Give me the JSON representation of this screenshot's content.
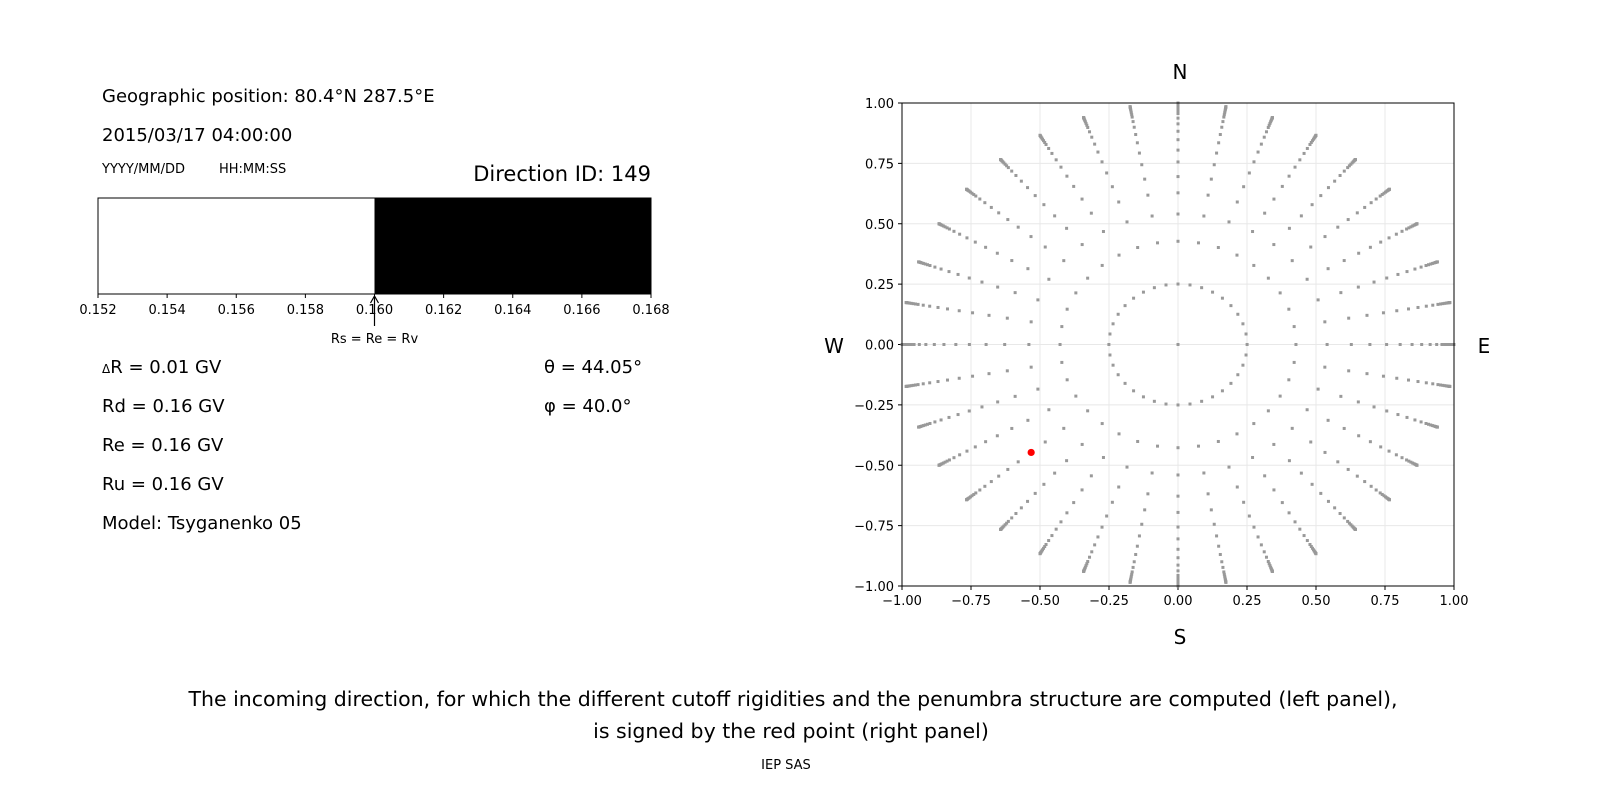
{
  "header": {
    "geo_position": "Geographic position: 80.4°N 287.5°E",
    "datetime": "2015/03/17 04:00:00",
    "date_format": "YYYY/MM/DD",
    "time_format": "HH:MM:SS",
    "direction_id": "Direction ID: 149"
  },
  "values": {
    "delta_r_symbol": "Δ",
    "delta_r": "R = 0.01 GV",
    "rd": "Rd = 0.16 GV",
    "re": "Re = 0.16 GV",
    "ru": "Ru = 0.16 GV",
    "model": "Model: Tsyganenko 05",
    "theta": "θ = 44.05°",
    "phi": "φ = 40.0°"
  },
  "compass": {
    "n": "N",
    "s": "S",
    "w": "W",
    "e": "E"
  },
  "caption": {
    "line1": "The incoming direction, for which the different cutoff rigidities and the penumbra structure are computed (left panel),",
    "line2": "is signed by the red point (right panel)",
    "credit": "IEP SAS"
  },
  "chart_data": [
    {
      "type": "bar",
      "xlim": [
        0.152,
        0.168
      ],
      "xticks": [
        "0.152",
        "0.154",
        "0.156",
        "0.158",
        "0.160",
        "0.162",
        "0.164",
        "0.166",
        "0.168"
      ],
      "segments": [
        {
          "from": 0.152,
          "to": 0.16,
          "color": "#ffffff"
        },
        {
          "from": 0.16,
          "to": 0.168,
          "color": "#000000"
        }
      ],
      "annotation": {
        "x": 0.16,
        "text": "Rs = Re = Rv"
      }
    },
    {
      "type": "scatter",
      "xlim": [
        -1,
        1
      ],
      "ylim": [
        -1,
        1
      ],
      "grid": true,
      "xticks": [
        "−1.00",
        "−0.75",
        "−0.50",
        "−0.25",
        "0.00",
        "0.25",
        "0.50",
        "0.75",
        "1.00"
      ],
      "yticks": [
        "−1.00",
        "−0.75",
        "−0.50",
        "−0.25",
        "0.00",
        "0.25",
        "0.50",
        "0.75",
        "1.00"
      ],
      "point_color": "#999999",
      "grid_azimuth_step_deg": 10,
      "grid_zenith_deg": [
        14.5,
        25.3,
        32.7,
        38.9,
        44.05,
        49.1,
        53.6,
        58,
        62,
        66,
        69.6,
        73,
        75,
        77,
        79,
        81,
        83,
        85,
        87,
        89,
        90
      ],
      "center_point": [
        0,
        0
      ],
      "selected": {
        "x": -0.532,
        "y": -0.447,
        "color": "#ff0000"
      }
    }
  ]
}
